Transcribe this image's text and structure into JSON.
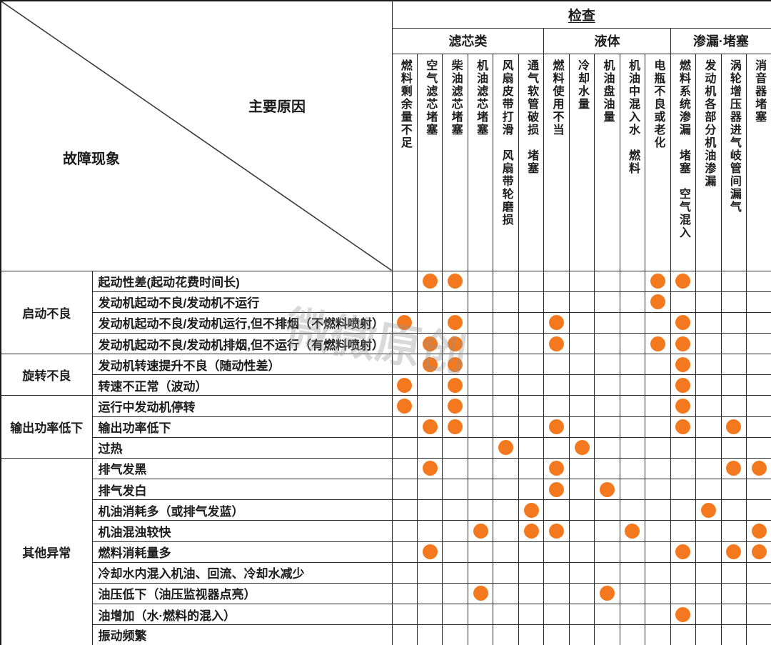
{
  "header": {
    "check_label": "检查",
    "main_cause_label": "主要原因",
    "fault_label": "故障现象",
    "groups": [
      {
        "label": "滤芯类",
        "span": 6
      },
      {
        "label": "液体",
        "span": 5
      },
      {
        "label": "渗漏·堵塞",
        "span": 4
      }
    ],
    "columns": [
      "燃料剩余量不足",
      "空气滤芯堵塞",
      "柴油滤芯堵塞",
      "机油滤芯堵塞",
      "风扇皮带打滑　风扇带轮磨损",
      "通气软管破损　堵塞",
      "燃料使用不当",
      "冷却水量",
      "机油盘油量",
      "机油中混入水　燃料",
      "电瓶不良或老化",
      "燃料系统渗漏　堵塞　空气混入",
      "发动机各部分机油渗漏",
      "涡轮增压器进气岐管间漏气",
      "消音器堵塞"
    ]
  },
  "row_groups": [
    {
      "label": "启动不良",
      "rows": [
        {
          "label": "起动性差(起动花费时间长)",
          "checks": [
            2,
            3,
            11,
            12
          ]
        },
        {
          "label": "发动机起动不良/发动机不运行",
          "checks": [
            11
          ]
        },
        {
          "label": "发动机起动不良/发动机运行,但不排烟（不燃料喷射）",
          "checks": [
            1,
            3,
            7,
            12
          ]
        },
        {
          "label": "发动机起动不良/发动机排烟,但不运行（有燃料喷射）",
          "checks": [
            2,
            3,
            7,
            11,
            12
          ]
        }
      ]
    },
    {
      "label": "旋转不良",
      "rows": [
        {
          "label": "发动机转速提升不良（随动性差）",
          "checks": [
            2,
            3,
            12
          ]
        },
        {
          "label": "转速不正常（波动）",
          "checks": [
            1,
            3,
            12
          ]
        }
      ]
    },
    {
      "label": "输出功率低下",
      "rows": [
        {
          "label": "运行中发动机停转",
          "checks": [
            1,
            3,
            12
          ]
        },
        {
          "label": "输出功率低下",
          "checks": [
            2,
            3,
            7,
            12,
            14
          ]
        },
        {
          "label": "过热",
          "checks": [
            5,
            8
          ]
        }
      ]
    },
    {
      "label": "其他异常",
      "rows": [
        {
          "label": "排气发黑",
          "checks": [
            2,
            7,
            14,
            15
          ]
        },
        {
          "label": "排气发白",
          "checks": [
            7,
            9
          ]
        },
        {
          "label": "机油消耗多（或排气发蓝）",
          "checks": [
            6,
            13
          ]
        },
        {
          "label": "机油混浊较快",
          "checks": [
            4,
            6,
            7,
            10,
            15
          ]
        },
        {
          "label": "燃料消耗量多",
          "checks": [
            2,
            12,
            14,
            15
          ]
        },
        {
          "label": "冷却水内混入机油、回流、冷却水减少",
          "checks": []
        },
        {
          "label": "油压低下（油压监视器点亮）",
          "checks": [
            4,
            9
          ]
        },
        {
          "label": "油增加（水·燃料的混入）",
          "checks": [
            12
          ]
        },
        {
          "label": "振动频繁",
          "checks": []
        }
      ]
    }
  ],
  "watermark": "微微原创",
  "colors": {
    "dot": "#F4791E"
  },
  "layout_counts": {
    "columns": 15,
    "rows": 18
  }
}
